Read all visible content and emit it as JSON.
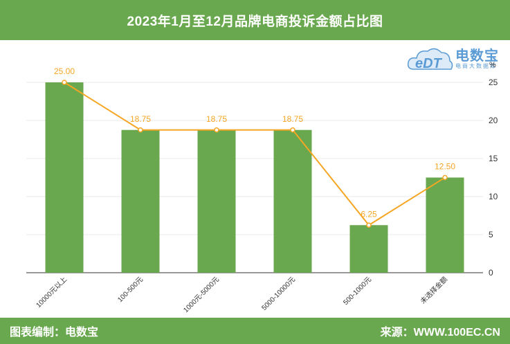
{
  "header": {
    "title": "2023年1月至12月品牌电商投诉金额占比图"
  },
  "footer": {
    "left": "图表编制：电数宝",
    "right": "来源：WWW.100EC.CN"
  },
  "logo": {
    "brand": "电数宝",
    "sub": "电商大数据库",
    "mark": "eDT"
  },
  "colors": {
    "header_bg": "#6aa84f",
    "bar": "#6aa84f",
    "line": "#f5a623",
    "label": "#f5a623",
    "logo": "#5b9bd5"
  },
  "chart_data": {
    "type": "bar",
    "categories": [
      "10000元以上",
      "100-500元",
      "1000元-5000元",
      "5000-10000元",
      "500-1000元",
      "未选择金额"
    ],
    "values": [
      25.0,
      18.75,
      18.75,
      18.75,
      6.25,
      12.5
    ],
    "value_labels": [
      "25.00",
      "18.75",
      "18.75",
      "18.75",
      "6.25",
      "12.50"
    ],
    "overlay": "line",
    "yunit": "%",
    "ylim": [
      0,
      25
    ],
    "yticks": [
      0,
      5,
      10,
      15,
      20,
      25
    ],
    "yaxis_side": "right",
    "grid": true
  }
}
